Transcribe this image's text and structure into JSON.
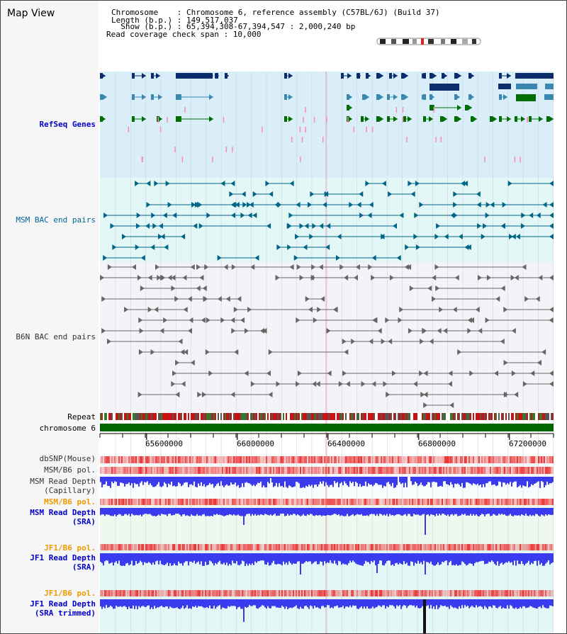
{
  "header": {
    "title": "Map View",
    "chromosome_line": "Chromosome    : Chromosome 6, reference assembly (C57BL/6J) (Build 37)",
    "length_line": "Length (b.p.) : 149,517,037",
    "show_line": "  Show (b.p.) : 65,394,308-67,394,547 : 2,000,240 bp",
    "coverage_line": "Read coverage check span : 10,000"
  },
  "tracks": {
    "refseq": "RefSeq Genes",
    "msm_bac": "MSM BAC end pairs",
    "b6n_bac": "B6N BAC end pairs",
    "repeat": "Repeat",
    "chromosome": "chromosome 6",
    "dbsnp": "dbSNP(Mouse)",
    "msm_pol_1": "MSM/B6 pol.",
    "msm_depth_cap": "MSM Read Depth\n(Capillary)",
    "msm_pol_2": "MSM/B6 pol.",
    "msm_depth_sra": "MSM Read Depth\n(SRA)",
    "jf1_pol_1": "JF1/B6 pol.",
    "jf1_depth_sra": "JF1 Read Depth\n(SRA)",
    "jf1_pol_2": "JF1/B6 pol.",
    "jf1_depth_trim": "JF1 Read Depth\n(SRA trimmed)"
  },
  "axis": {
    "ticks": [
      "65600000",
      "66000000",
      "66400000",
      "66800000",
      "67200000"
    ],
    "tick_values": [
      65600000,
      66000000,
      66400000,
      66800000,
      67200000
    ],
    "range": [
      65394308,
      67394547
    ]
  },
  "colors": {
    "refseq_bg": "#d9eef8",
    "msm_bg": "#e4f7f7",
    "b6n_bg": "#f4f4f8",
    "gene_dark": "#0b2d6b",
    "gene_mid": "#3c87b0",
    "gene_green": "#006e00",
    "bac_teal": "#006688",
    "bac_grey": "#666666",
    "depth_blue": "#3a3aee",
    "pol_red": "#ee3333",
    "chrom_green": "#006600"
  },
  "icons": {
    "chromosome_ideogram": "chromosome-ideogram-icon"
  }
}
